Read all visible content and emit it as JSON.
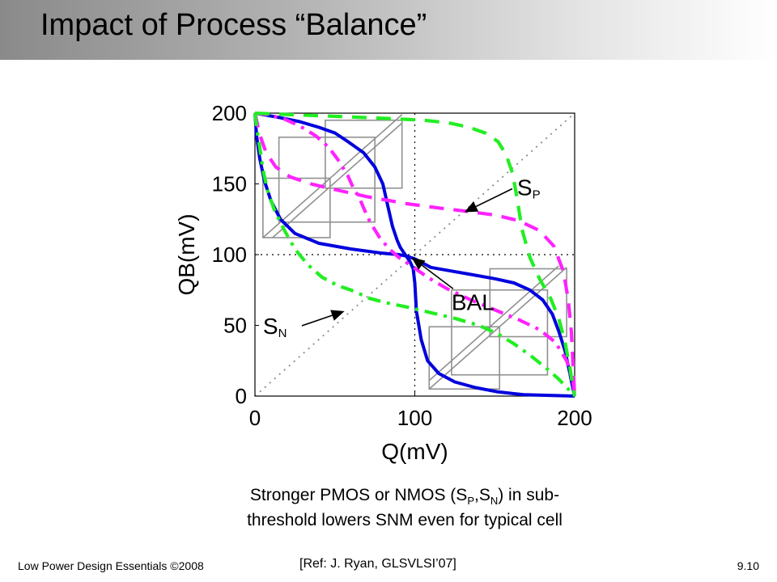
{
  "slide": {
    "title": "Impact of Process “Balance”",
    "caption_line1_a": "Stronger PMOS or NMOS (S",
    "caption_sub1": "P",
    "caption_line1_b": ",S",
    "caption_sub2": "N",
    "caption_line1_c": ") in sub-",
    "caption_line2": "threshold lowers SNM even for typical cell",
    "footer_left": "Low Power Design Essentials ©2008",
    "footer_ref": "[Ref: J. Ryan, GLSVLSI’07]",
    "footer_right": "9.10"
  },
  "colors": {
    "balanced": "#0000dd",
    "strong_pmos": "#ff22ff",
    "strong_nmos": "#22ee22",
    "square": "#909090",
    "diagonal": "#8a8a8a",
    "grid": "#000000"
  },
  "chart_data": {
    "type": "line",
    "xlabel": "Q(mV)",
    "ylabel": "QB(mV)",
    "xlim": [
      0,
      200
    ],
    "ylim": [
      0,
      200
    ],
    "xticks": [
      0,
      100,
      200
    ],
    "yticks": [
      0,
      50,
      100,
      150,
      200
    ],
    "grid": "dotted at 100 mV",
    "diagonal": "dotted y = x",
    "series": [
      {
        "name": "BAL",
        "style": "solid",
        "color": "#0000dd",
        "a": [
          [
            0,
            200
          ],
          [
            1,
            184
          ],
          [
            3,
            168
          ],
          [
            6,
            152
          ],
          [
            10,
            138
          ],
          [
            16,
            125
          ],
          [
            25,
            115
          ],
          [
            40,
            108
          ],
          [
            60,
            104
          ],
          [
            80,
            101
          ],
          [
            90,
            100
          ],
          [
            95,
            99
          ],
          [
            100,
            97
          ],
          [
            105,
            94
          ],
          [
            110,
            91
          ],
          [
            120,
            89
          ],
          [
            135,
            86
          ],
          [
            150,
            83
          ],
          [
            162,
            80
          ],
          [
            172,
            75
          ],
          [
            180,
            68
          ],
          [
            186,
            58
          ],
          [
            190,
            46
          ],
          [
            194,
            32
          ],
          [
            197,
            16
          ],
          [
            199,
            5
          ],
          [
            200,
            0
          ]
        ],
        "b": [
          [
            0,
            200
          ],
          [
            5,
            199
          ],
          [
            15,
            197
          ],
          [
            28,
            194
          ],
          [
            40,
            190
          ],
          [
            50,
            186
          ],
          [
            58,
            180
          ],
          [
            68,
            172
          ],
          [
            75,
            162
          ],
          [
            80,
            150
          ],
          [
            83,
            135
          ],
          [
            86,
            120
          ],
          [
            89,
            110
          ],
          [
            91,
            105
          ],
          [
            94,
            100
          ],
          [
            97,
            95
          ],
          [
            99,
            90
          ],
          [
            100,
            80
          ],
          [
            101,
            60
          ],
          [
            104,
            40
          ],
          [
            108,
            25
          ],
          [
            115,
            16
          ],
          [
            125,
            10
          ],
          [
            138,
            6
          ],
          [
            152,
            3
          ],
          [
            168,
            1
          ],
          [
            184,
            0.5
          ],
          [
            200,
            0
          ]
        ]
      },
      {
        "name": "SP",
        "style": "dashed",
        "color": "#ff22ff",
        "a": [
          [
            0,
            200
          ],
          [
            3,
            185
          ],
          [
            7,
            172
          ],
          [
            13,
            162
          ],
          [
            22,
            155
          ],
          [
            35,
            150
          ],
          [
            50,
            146
          ],
          [
            70,
            141
          ],
          [
            95,
            136
          ],
          [
            115,
            133
          ],
          [
            130,
            131
          ],
          [
            150,
            128
          ],
          [
            165,
            124
          ],
          [
            178,
            117
          ],
          [
            187,
            106
          ],
          [
            193,
            88
          ],
          [
            196,
            68
          ],
          [
            198,
            45
          ],
          [
            199,
            22
          ],
          [
            200,
            0
          ]
        ]
      },
      {
        "name": "SP",
        "style": "dash-dot",
        "color": "#ff22ff",
        "b": [
          [
            0,
            200
          ],
          [
            8,
            199
          ],
          [
            18,
            196
          ],
          [
            28,
            191
          ],
          [
            38,
            184
          ],
          [
            46,
            176
          ],
          [
            52,
            167
          ],
          [
            58,
            156
          ],
          [
            62,
            146
          ],
          [
            65,
            141
          ],
          [
            68,
            133
          ],
          [
            72,
            123
          ],
          [
            78,
            112
          ],
          [
            84,
            104
          ],
          [
            90,
            98
          ],
          [
            98,
            92
          ],
          [
            108,
            84
          ],
          [
            120,
            76
          ],
          [
            135,
            68
          ],
          [
            150,
            61
          ],
          [
            165,
            54
          ],
          [
            178,
            47
          ],
          [
            188,
            38
          ],
          [
            195,
            25
          ],
          [
            199,
            10
          ],
          [
            200,
            0
          ]
        ]
      },
      {
        "name": "SN",
        "style": "dashed",
        "color": "#22ee22",
        "b": [
          [
            0,
            200
          ],
          [
            22,
            199
          ],
          [
            45,
            198
          ],
          [
            68,
            197
          ],
          [
            88,
            196
          ],
          [
            106,
            195
          ],
          [
            122,
            193
          ],
          [
            134,
            190
          ],
          [
            144,
            186
          ],
          [
            152,
            180
          ],
          [
            157,
            171
          ],
          [
            161,
            158
          ],
          [
            164,
            140
          ],
          [
            167,
            118
          ],
          [
            172,
            98
          ],
          [
            178,
            83
          ],
          [
            185,
            69
          ],
          [
            190,
            55
          ],
          [
            194,
            38
          ],
          [
            197,
            20
          ],
          [
            199,
            6
          ],
          [
            200,
            0
          ]
        ]
      },
      {
        "name": "SN",
        "style": "dash-dot",
        "color": "#22ee22",
        "a": [
          [
            0,
            200
          ],
          [
            1,
            190
          ],
          [
            3,
            176
          ],
          [
            5,
            160
          ],
          [
            8,
            145
          ],
          [
            12,
            132
          ],
          [
            18,
            118
          ],
          [
            25,
            104
          ],
          [
            33,
            93
          ],
          [
            42,
            84
          ],
          [
            52,
            78
          ],
          [
            60,
            75
          ],
          [
            66,
            72
          ],
          [
            72,
            69
          ],
          [
            82,
            66
          ],
          [
            95,
            63
          ],
          [
            110,
            59
          ],
          [
            125,
            55
          ],
          [
            140,
            50
          ],
          [
            152,
            44
          ],
          [
            162,
            37
          ],
          [
            172,
            29
          ],
          [
            182,
            20
          ],
          [
            190,
            12
          ],
          [
            196,
            5
          ],
          [
            200,
            0
          ]
        ]
      }
    ],
    "snm_squares": [
      {
        "x0": 5,
        "y0": 112,
        "x1": 47,
        "y1": 154
      },
      {
        "x0": 15,
        "y0": 123,
        "x1": 75,
        "y1": 183
      },
      {
        "x0": 44,
        "y0": 147,
        "x1": 92,
        "y1": 195
      },
      {
        "x0": 109,
        "y0": 5,
        "x1": 153,
        "y1": 49
      },
      {
        "x0": 123,
        "y0": 15,
        "x1": 183,
        "y1": 75
      },
      {
        "x0": 147,
        "y0": 42,
        "x1": 195,
        "y1": 90
      }
    ],
    "snm_diagonals": [
      {
        "x0": 5,
        "y0": 112,
        "x1": 92,
        "y1": 199
      },
      {
        "x0": 11,
        "y0": 112,
        "x1": 92,
        "y1": 193
      },
      {
        "x0": 109,
        "y0": 5,
        "x1": 195,
        "y1": 91
      },
      {
        "x0": 109,
        "y0": 11,
        "x1": 190,
        "y1": 92
      }
    ],
    "annotations": [
      {
        "text": "S",
        "sub": "P",
        "x": 164,
        "y": 142,
        "arrow_to": [
          131,
          130
        ]
      },
      {
        "text": "BAL",
        "x": 123,
        "y": 61,
        "arrow_to": [
          98,
          98
        ]
      },
      {
        "text": "S",
        "sub": "N",
        "x": 5,
        "y": 44,
        "arrow_to": [
          56,
          60
        ]
      }
    ]
  }
}
